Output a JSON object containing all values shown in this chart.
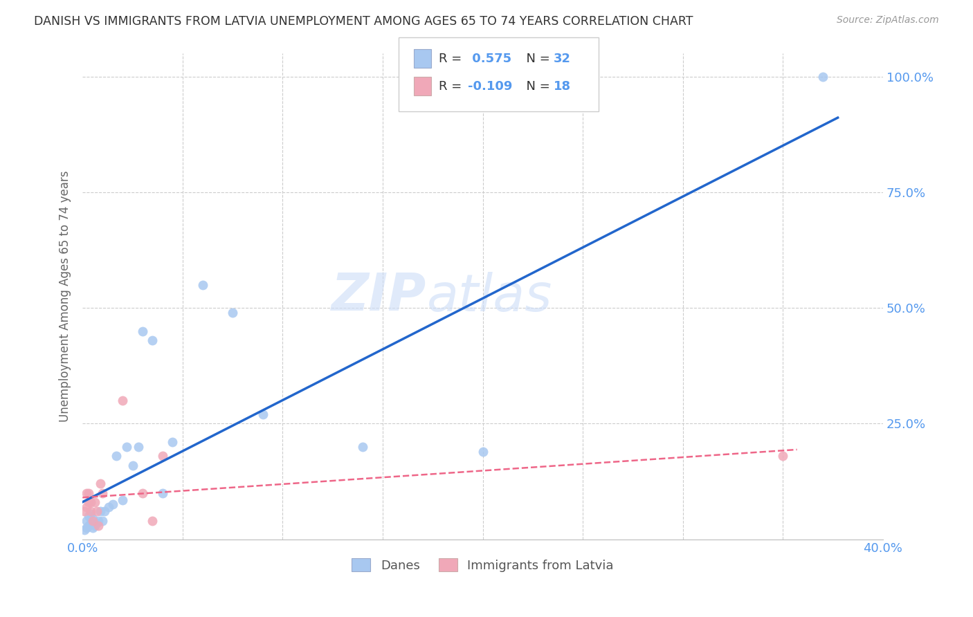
{
  "title": "DANISH VS IMMIGRANTS FROM LATVIA UNEMPLOYMENT AMONG AGES 65 TO 74 YEARS CORRELATION CHART",
  "source": "Source: ZipAtlas.com",
  "ylabel": "Unemployment Among Ages 65 to 74 years",
  "xlim": [
    0,
    0.4
  ],
  "ylim": [
    0,
    1.05
  ],
  "danes_x": [
    0.001,
    0.002,
    0.002,
    0.003,
    0.003,
    0.004,
    0.004,
    0.005,
    0.005,
    0.006,
    0.007,
    0.008,
    0.009,
    0.01,
    0.011,
    0.013,
    0.015,
    0.017,
    0.02,
    0.022,
    0.025,
    0.028,
    0.03,
    0.035,
    0.04,
    0.045,
    0.06,
    0.075,
    0.09,
    0.14,
    0.2,
    0.37
  ],
  "danes_y": [
    0.02,
    0.025,
    0.04,
    0.03,
    0.05,
    0.035,
    0.055,
    0.025,
    0.045,
    0.03,
    0.035,
    0.04,
    0.06,
    0.04,
    0.06,
    0.07,
    0.075,
    0.18,
    0.085,
    0.2,
    0.16,
    0.2,
    0.45,
    0.43,
    0.1,
    0.21,
    0.55,
    0.49,
    0.27,
    0.2,
    0.19,
    1.0
  ],
  "latvia_x": [
    0.001,
    0.002,
    0.002,
    0.003,
    0.003,
    0.004,
    0.004,
    0.005,
    0.006,
    0.007,
    0.008,
    0.009,
    0.01,
    0.02,
    0.03,
    0.035,
    0.04,
    0.35
  ],
  "latvia_y": [
    0.06,
    0.07,
    0.1,
    0.08,
    0.1,
    0.06,
    0.08,
    0.04,
    0.08,
    0.06,
    0.03,
    0.12,
    0.1,
    0.3,
    0.1,
    0.04,
    0.18,
    0.18
  ],
  "danes_color": "#a8c8f0",
  "latvia_color": "#f0a8b8",
  "danes_line_color": "#2266cc",
  "latvia_line_color": "#ee6688",
  "danes_R": 0.575,
  "danes_N": 32,
  "latvia_R": -0.109,
  "latvia_N": 18,
  "legend_danes": "Danes",
  "legend_latvia": "Immigrants from Latvia",
  "watermark_zip": "ZIP",
  "watermark_atlas": "atlas",
  "background_color": "#ffffff",
  "grid_color": "#cccccc",
  "title_color": "#333333",
  "axis_label_color": "#5599ee",
  "dot_size": 100,
  "ytick_vals": [
    0.0,
    0.25,
    0.5,
    0.75,
    1.0
  ],
  "ytick_labels_right": [
    "",
    "25.0%",
    "50.0%",
    "75.0%",
    "100.0%"
  ],
  "xtick_vals": [
    0.0,
    0.05,
    0.1,
    0.15,
    0.2,
    0.25,
    0.3,
    0.35,
    0.4
  ],
  "xtick_labels": [
    "0.0%",
    "",
    "",
    "",
    "",
    "",
    "",
    "",
    "40.0%"
  ]
}
